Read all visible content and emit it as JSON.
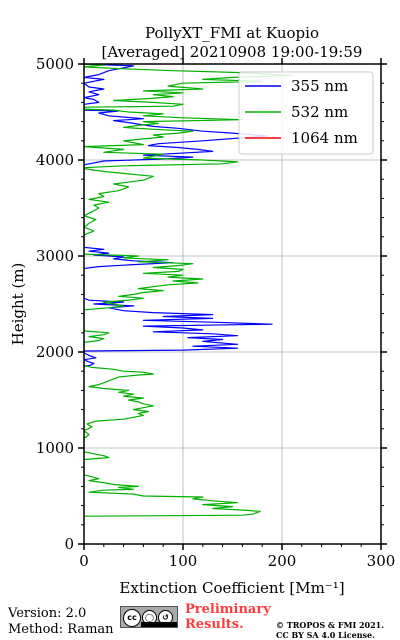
{
  "chart_data": {
    "type": "line",
    "title_line1": "PollyXT_FMI at Kuopio",
    "title_line2": "[Averaged] 20210908 19:00-19:59",
    "xlabel": "Extinction Coefficient [Mm⁻¹]",
    "ylabel": "Height (m)",
    "xlim": [
      0,
      300
    ],
    "ylim": [
      0,
      5000
    ],
    "xticks": [
      0,
      100,
      200,
      300
    ],
    "yticks": [
      0,
      1000,
      2000,
      3000,
      4000,
      5000
    ],
    "grid": true,
    "legend_position": "top-right",
    "series": [
      {
        "name": "355 nm",
        "color": "#0000ff",
        "points": [
          [
            0,
            1850
          ],
          [
            6,
            1860
          ],
          [
            10,
            1880
          ],
          [
            4,
            1900
          ],
          [
            0,
            1920
          ],
          [
            12,
            1940
          ],
          [
            6,
            1960
          ],
          [
            0,
            1990
          ],
          [
            0,
            2010
          ],
          [
            100,
            2020
          ],
          [
            155,
            2040
          ],
          [
            110,
            2060
          ],
          [
            155,
            2080
          ],
          [
            120,
            2110
          ],
          [
            140,
            2130
          ],
          [
            105,
            2150
          ],
          [
            155,
            2170
          ],
          [
            130,
            2190
          ],
          [
            70,
            2210
          ],
          [
            120,
            2230
          ],
          [
            100,
            2250
          ],
          [
            60,
            2270
          ],
          [
            190,
            2290
          ],
          [
            130,
            2310
          ],
          [
            60,
            2330
          ],
          [
            130,
            2350
          ],
          [
            80,
            2370
          ],
          [
            130,
            2390
          ],
          [
            70,
            2410
          ],
          [
            40,
            2430
          ],
          [
            25,
            2460
          ],
          [
            50,
            2480
          ],
          [
            10,
            2500
          ],
          [
            40,
            2520
          ],
          [
            5,
            2540
          ],
          [
            0,
            2560
          ],
          [
            0,
            2870
          ],
          [
            15,
            2890
          ],
          [
            50,
            2910
          ],
          [
            90,
            2930
          ],
          [
            50,
            2950
          ],
          [
            30,
            2970
          ],
          [
            40,
            2990
          ],
          [
            10,
            3010
          ],
          [
            25,
            3030
          ],
          [
            5,
            3050
          ],
          [
            20,
            3070
          ],
          [
            0,
            3090
          ],
          [
            0,
            3950
          ],
          [
            20,
            3990
          ],
          [
            80,
            4010
          ],
          [
            110,
            4030
          ],
          [
            60,
            4050
          ],
          [
            95,
            4070
          ],
          [
            130,
            4090
          ],
          [
            115,
            4110
          ],
          [
            95,
            4130
          ],
          [
            65,
            4150
          ],
          [
            75,
            4170
          ],
          [
            120,
            4200
          ],
          [
            185,
            4250
          ],
          [
            150,
            4280
          ],
          [
            120,
            4300
          ],
          [
            95,
            4330
          ],
          [
            70,
            4350
          ],
          [
            45,
            4390
          ],
          [
            30,
            4410
          ],
          [
            60,
            4430
          ],
          [
            25,
            4460
          ],
          [
            15,
            4490
          ],
          [
            35,
            4510
          ],
          [
            0,
            4520
          ],
          [
            0,
            4580
          ],
          [
            15,
            4600
          ],
          [
            10,
            4630
          ],
          [
            0,
            4650
          ],
          [
            15,
            4680
          ],
          [
            5,
            4710
          ],
          [
            20,
            4740
          ],
          [
            5,
            4760
          ],
          [
            0,
            4800
          ],
          [
            20,
            4840
          ],
          [
            0,
            4860
          ],
          [
            15,
            4890
          ],
          [
            25,
            4930
          ],
          [
            40,
            4960
          ],
          [
            50,
            4980
          ],
          [
            0,
            5000
          ]
        ]
      },
      {
        "name": "532 nm",
        "color": "#00b000",
        "points": [
          [
            0,
            290
          ],
          [
            160,
            300
          ],
          [
            170,
            310
          ],
          [
            178,
            340
          ],
          [
            165,
            350
          ],
          [
            130,
            370
          ],
          [
            150,
            390
          ],
          [
            120,
            410
          ],
          [
            155,
            430
          ],
          [
            130,
            450
          ],
          [
            110,
            470
          ],
          [
            120,
            490
          ],
          [
            60,
            500
          ],
          [
            50,
            520
          ],
          [
            5,
            540
          ],
          [
            20,
            560
          ],
          [
            50,
            570
          ],
          [
            35,
            590
          ],
          [
            55,
            600
          ],
          [
            30,
            620
          ],
          [
            20,
            640
          ],
          [
            5,
            660
          ],
          [
            15,
            680
          ],
          [
            8,
            700
          ],
          [
            0,
            720
          ],
          [
            0,
            880
          ],
          [
            25,
            900
          ],
          [
            20,
            920
          ],
          [
            10,
            940
          ],
          [
            0,
            960
          ],
          [
            0,
            1100
          ],
          [
            5,
            1140
          ],
          [
            0,
            1180
          ],
          [
            8,
            1220
          ],
          [
            3,
            1250
          ],
          [
            12,
            1280
          ],
          [
            40,
            1300
          ],
          [
            50,
            1320
          ],
          [
            60,
            1340
          ],
          [
            55,
            1360
          ],
          [
            65,
            1380
          ],
          [
            50,
            1400
          ],
          [
            60,
            1420
          ],
          [
            70,
            1440
          ],
          [
            60,
            1460
          ],
          [
            55,
            1480
          ],
          [
            45,
            1500
          ],
          [
            60,
            1520
          ],
          [
            40,
            1540
          ],
          [
            50,
            1560
          ],
          [
            35,
            1580
          ],
          [
            45,
            1600
          ],
          [
            20,
            1620
          ],
          [
            5,
            1640
          ],
          [
            15,
            1660
          ],
          [
            20,
            1680
          ],
          [
            25,
            1700
          ],
          [
            30,
            1720
          ],
          [
            35,
            1740
          ],
          [
            55,
            1760
          ],
          [
            70,
            1770
          ],
          [
            60,
            1790
          ],
          [
            40,
            1800
          ],
          [
            30,
            1820
          ],
          [
            8,
            1840
          ],
          [
            0,
            1860
          ],
          [
            0,
            2100
          ],
          [
            15,
            2120
          ],
          [
            20,
            2140
          ],
          [
            5,
            2160
          ],
          [
            20,
            2180
          ],
          [
            25,
            2200
          ],
          [
            0,
            2220
          ],
          [
            0,
            2440
          ],
          [
            25,
            2460
          ],
          [
            40,
            2480
          ],
          [
            30,
            2500
          ],
          [
            20,
            2520
          ],
          [
            45,
            2540
          ],
          [
            60,
            2560
          ],
          [
            35,
            2580
          ],
          [
            50,
            2600
          ],
          [
            60,
            2620
          ],
          [
            80,
            2640
          ],
          [
            55,
            2660
          ],
          [
            70,
            2680
          ],
          [
            85,
            2700
          ],
          [
            115,
            2720
          ],
          [
            90,
            2740
          ],
          [
            120,
            2760
          ],
          [
            85,
            2780
          ],
          [
            100,
            2800
          ],
          [
            60,
            2820
          ],
          [
            95,
            2840
          ],
          [
            100,
            2860
          ],
          [
            70,
            2880
          ],
          [
            95,
            2900
          ],
          [
            110,
            2920
          ],
          [
            55,
            2940
          ],
          [
            85,
            2960
          ],
          [
            40,
            2980
          ],
          [
            55,
            3000
          ],
          [
            0,
            3020
          ],
          [
            0,
            3220
          ],
          [
            10,
            3260
          ],
          [
            0,
            3300
          ],
          [
            5,
            3340
          ],
          [
            12,
            3380
          ],
          [
            0,
            3420
          ],
          [
            8,
            3460
          ],
          [
            15,
            3500
          ],
          [
            10,
            3530
          ],
          [
            25,
            3560
          ],
          [
            5,
            3590
          ],
          [
            20,
            3620
          ],
          [
            15,
            3650
          ],
          [
            35,
            3680
          ],
          [
            45,
            3720
          ],
          [
            30,
            3750
          ],
          [
            60,
            3790
          ],
          [
            70,
            3830
          ],
          [
            40,
            3860
          ],
          [
            20,
            3880
          ],
          [
            0,
            3910
          ],
          [
            0,
            3920
          ],
          [
            40,
            3940
          ],
          [
            140,
            3960
          ],
          [
            155,
            3980
          ],
          [
            120,
            4000
          ],
          [
            60,
            4020
          ],
          [
            80,
            4060
          ],
          [
            20,
            4080
          ],
          [
            40,
            4110
          ],
          [
            0,
            4140
          ],
          [
            0,
            4140
          ],
          [
            60,
            4160
          ],
          [
            40,
            4200
          ],
          [
            80,
            4240
          ],
          [
            70,
            4260
          ],
          [
            95,
            4280
          ],
          [
            110,
            4300
          ],
          [
            70,
            4320
          ],
          [
            40,
            4340
          ],
          [
            55,
            4360
          ],
          [
            75,
            4380
          ],
          [
            60,
            4400
          ],
          [
            160,
            4420
          ],
          [
            100,
            4440
          ],
          [
            60,
            4460
          ],
          [
            80,
            4480
          ],
          [
            45,
            4500
          ],
          [
            30,
            4520
          ],
          [
            0,
            4530
          ],
          [
            0,
            4550
          ],
          [
            90,
            4560
          ],
          [
            100,
            4580
          ],
          [
            70,
            4600
          ],
          [
            30,
            4620
          ],
          [
            65,
            4640
          ],
          [
            90,
            4660
          ],
          [
            70,
            4680
          ],
          [
            100,
            4700
          ],
          [
            60,
            4720
          ],
          [
            120,
            4740
          ],
          [
            85,
            4770
          ],
          [
            100,
            4800
          ],
          [
            180,
            4820
          ],
          [
            120,
            4840
          ],
          [
            150,
            4860
          ],
          [
            210,
            4880
          ],
          [
            160,
            4910
          ],
          [
            90,
            4930
          ],
          [
            40,
            4950
          ],
          [
            0,
            4970
          ],
          [
            20,
            4990
          ],
          [
            0,
            5000
          ]
        ]
      },
      {
        "name": "1064 nm",
        "color": "#ff0000",
        "points": []
      }
    ]
  },
  "footer": {
    "version": "Version: 2.0",
    "method": "Method: Raman",
    "cc_label": "cc",
    "preliminary_line1": "Preliminary",
    "preliminary_line2": "Results.",
    "copyright_line1": "© TROPOS & FMI 2021.",
    "copyright_line2": "CC BY SA 4.0 License."
  }
}
